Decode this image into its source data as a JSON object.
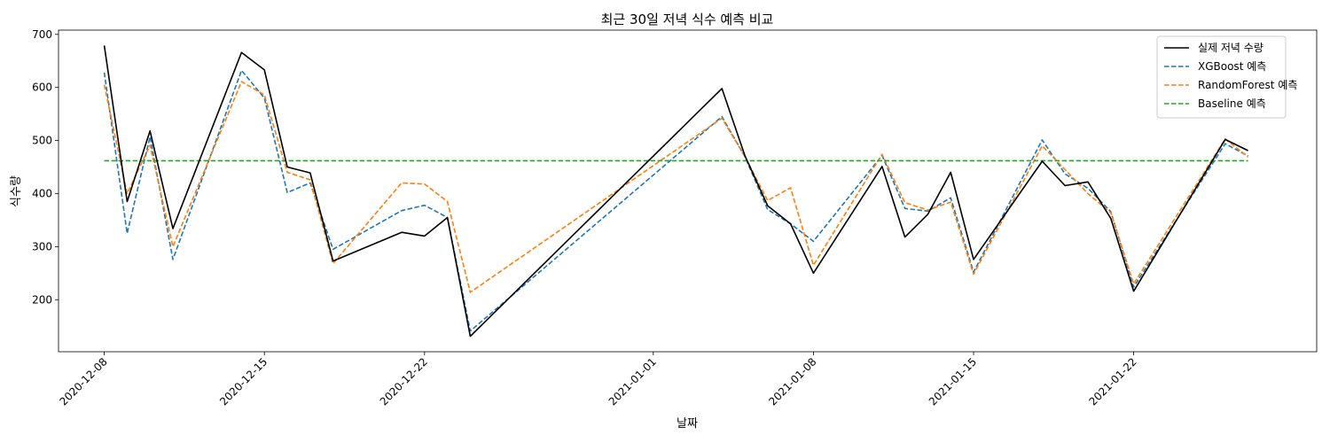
{
  "chart_data": {
    "type": "line",
    "title": "최근 30일 저녁 식수 예측 비교",
    "xlabel": "날짜",
    "ylabel": "식수량",
    "xlim": [
      "2020-12-06",
      "2021-01-30"
    ],
    "ylim": [
      102,
      708
    ],
    "x_ticks": [
      "2020-12-08",
      "2020-12-15",
      "2020-12-22",
      "2021-01-01",
      "2021-01-08",
      "2021-01-15",
      "2021-01-22"
    ],
    "y_ticks": [
      200,
      300,
      400,
      500,
      600,
      700
    ],
    "grid": false,
    "legend_position": "top-right",
    "x": [
      "2020-12-08",
      "2020-12-09",
      "2020-12-10",
      "2020-12-11",
      "2020-12-14",
      "2020-12-15",
      "2020-12-16",
      "2020-12-17",
      "2020-12-18",
      "2020-12-21",
      "2020-12-22",
      "2020-12-23",
      "2020-12-24",
      "2021-01-04",
      "2021-01-05",
      "2021-01-06",
      "2021-01-07",
      "2021-01-08",
      "2021-01-11",
      "2021-01-12",
      "2021-01-13",
      "2021-01-14",
      "2021-01-15",
      "2021-01-18",
      "2021-01-19",
      "2021-01-20",
      "2021-01-21",
      "2021-01-22",
      "2021-01-26",
      "2021-01-27"
    ],
    "series": [
      {
        "name": "실제 저녁 수량",
        "color": "#000000",
        "dash": "solid",
        "values": [
          679,
          385,
          518,
          334,
          666,
          633,
          450,
          439,
          273,
          327,
          320,
          355,
          131,
          598,
          472,
          377,
          343,
          250,
          451,
          318,
          361,
          440,
          276,
          461,
          415,
          422,
          353,
          216,
          502,
          481
        ]
      },
      {
        "name": "XGBoost 예측",
        "color": "#1f77b4",
        "dash": "dashed",
        "values": [
          628,
          325,
          507,
          276,
          632,
          580,
          402,
          420,
          295,
          368,
          378,
          355,
          141,
          545,
          470,
          370,
          343,
          310,
          472,
          372,
          367,
          392,
          252,
          501,
          437,
          410,
          366,
          224,
          494,
          471
        ]
      },
      {
        "name": "RandomForest 예측",
        "color": "#ff7f0e",
        "dash": "dashed",
        "values": [
          605,
          400,
          491,
          300,
          611,
          586,
          440,
          426,
          268,
          420,
          418,
          385,
          214,
          542,
          470,
          387,
          411,
          265,
          474,
          383,
          369,
          384,
          248,
          490,
          445,
          400,
          364,
          230,
          503,
          469
        ]
      },
      {
        "name": "Baseline 예측",
        "color": "#2ca02c",
        "dash": "dashed",
        "values": [
          462,
          462,
          462,
          462,
          462,
          462,
          462,
          462,
          462,
          462,
          462,
          462,
          462,
          462,
          462,
          462,
          462,
          462,
          462,
          462,
          462,
          462,
          462,
          462,
          462,
          462,
          462,
          462,
          462,
          462
        ]
      }
    ]
  }
}
